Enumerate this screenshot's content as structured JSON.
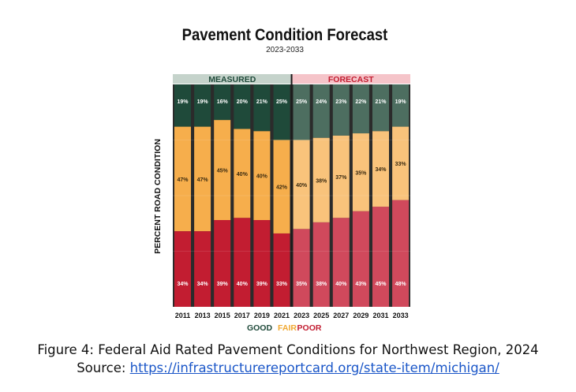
{
  "chart_data": {
    "type": "stacked-bar",
    "title": "Pavement Condition Forecast",
    "subtitle": "2023-2033",
    "ylabel": "PERCENT ROAD CONDITION",
    "ylim": [
      0,
      100
    ],
    "categories": [
      "2011",
      "2013",
      "2015",
      "2017",
      "2019",
      "2021",
      "2023",
      "2025",
      "2027",
      "2029",
      "2031",
      "2033"
    ],
    "groups": [
      {
        "label": "MEASURED",
        "count": 6
      },
      {
        "label": "FORECAST",
        "count": 6
      }
    ],
    "series": [
      {
        "name": "POOR",
        "values": [
          34,
          34,
          39,
          40,
          39,
          33,
          35,
          38,
          40,
          43,
          45,
          48
        ]
      },
      {
        "name": "FAIR",
        "values": [
          47,
          47,
          45,
          40,
          40,
          42,
          40,
          38,
          37,
          35,
          34,
          33
        ]
      },
      {
        "name": "GOOD",
        "values": [
          19,
          19,
          16,
          20,
          21,
          25,
          25,
          24,
          23,
          22,
          21,
          19
        ]
      }
    ],
    "legend": [
      "GOOD",
      "FAIR",
      "POOR"
    ]
  },
  "colors": {
    "measured": {
      "GOOD": "#1f4a3a",
      "FAIR": "#f6ae4c",
      "POOR": "#c21d31"
    },
    "forecast": {
      "GOOD": "#4d6e60",
      "FAIR": "#f9c37b",
      "POOR": "#d0495c"
    },
    "measured_header_bg": "#c5d3cb",
    "measured_header_text": "#1f4a3a",
    "forecast_header_bg": "#f5c4c9",
    "forecast_header_text": "#c21d31",
    "legend": {
      "GOOD": "#1f4a3a",
      "FAIR": "#f0a830",
      "POOR": "#c21d31"
    }
  },
  "caption": {
    "line1": "Figure 4: Federal Aid Rated Pavement Conditions for Northwest Region, 2024",
    "source_prefix": "Source: ",
    "source_link": " https://infrastructurereportcard.org/state-item/michigan/"
  }
}
